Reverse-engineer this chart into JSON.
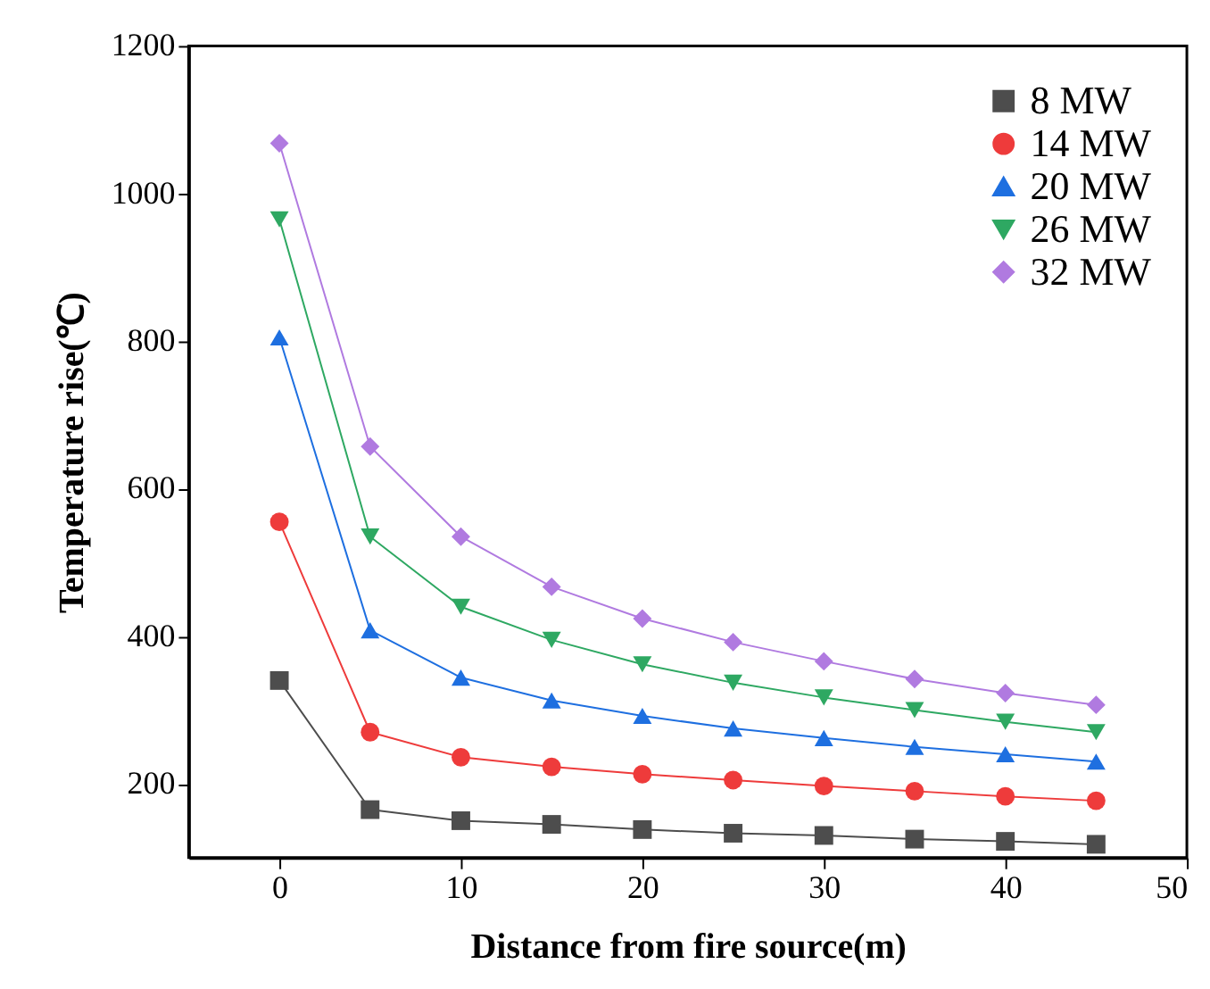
{
  "chart_data": {
    "type": "line",
    "xlabel": "Distance from fire source(m)",
    "ylabel": "Temperature rise(℃)",
    "x": [
      0,
      5,
      10,
      15,
      20,
      25,
      30,
      35,
      40,
      45
    ],
    "series": [
      {
        "name": "8 MW",
        "color": "#4d4d4d",
        "marker": "square",
        "values": [
          340,
          165,
          150,
          145,
          138,
          133,
          130,
          125,
          122,
          118
        ]
      },
      {
        "name": "14 MW",
        "color": "#ee3b3b",
        "marker": "circle",
        "values": [
          555,
          270,
          236,
          223,
          213,
          205,
          197,
          190,
          183,
          177
        ]
      },
      {
        "name": "20 MW",
        "color": "#1e6fe0",
        "marker": "triangle",
        "values": [
          805,
          408,
          344,
          313,
          292,
          275,
          262,
          250,
          240,
          230
        ]
      },
      {
        "name": "26 MW",
        "color": "#2ea862",
        "marker": "triangle-down",
        "values": [
          965,
          535,
          440,
          395,
          362,
          337,
          317,
          300,
          284,
          270
        ]
      },
      {
        "name": "32 MW",
        "color": "#b07ae0",
        "marker": "diamond",
        "values": [
          1068,
          657,
          535,
          467,
          424,
          392,
          366,
          342,
          323,
          307
        ]
      }
    ],
    "xlim": [
      -5,
      50
    ],
    "xticks": [
      0,
      10,
      20,
      30,
      40,
      50
    ],
    "ylim": [
      100,
      1200
    ],
    "yticks": [
      200,
      400,
      600,
      800,
      1000,
      1200
    ],
    "legend": "top right",
    "grid": false,
    "line_style": "solid"
  }
}
